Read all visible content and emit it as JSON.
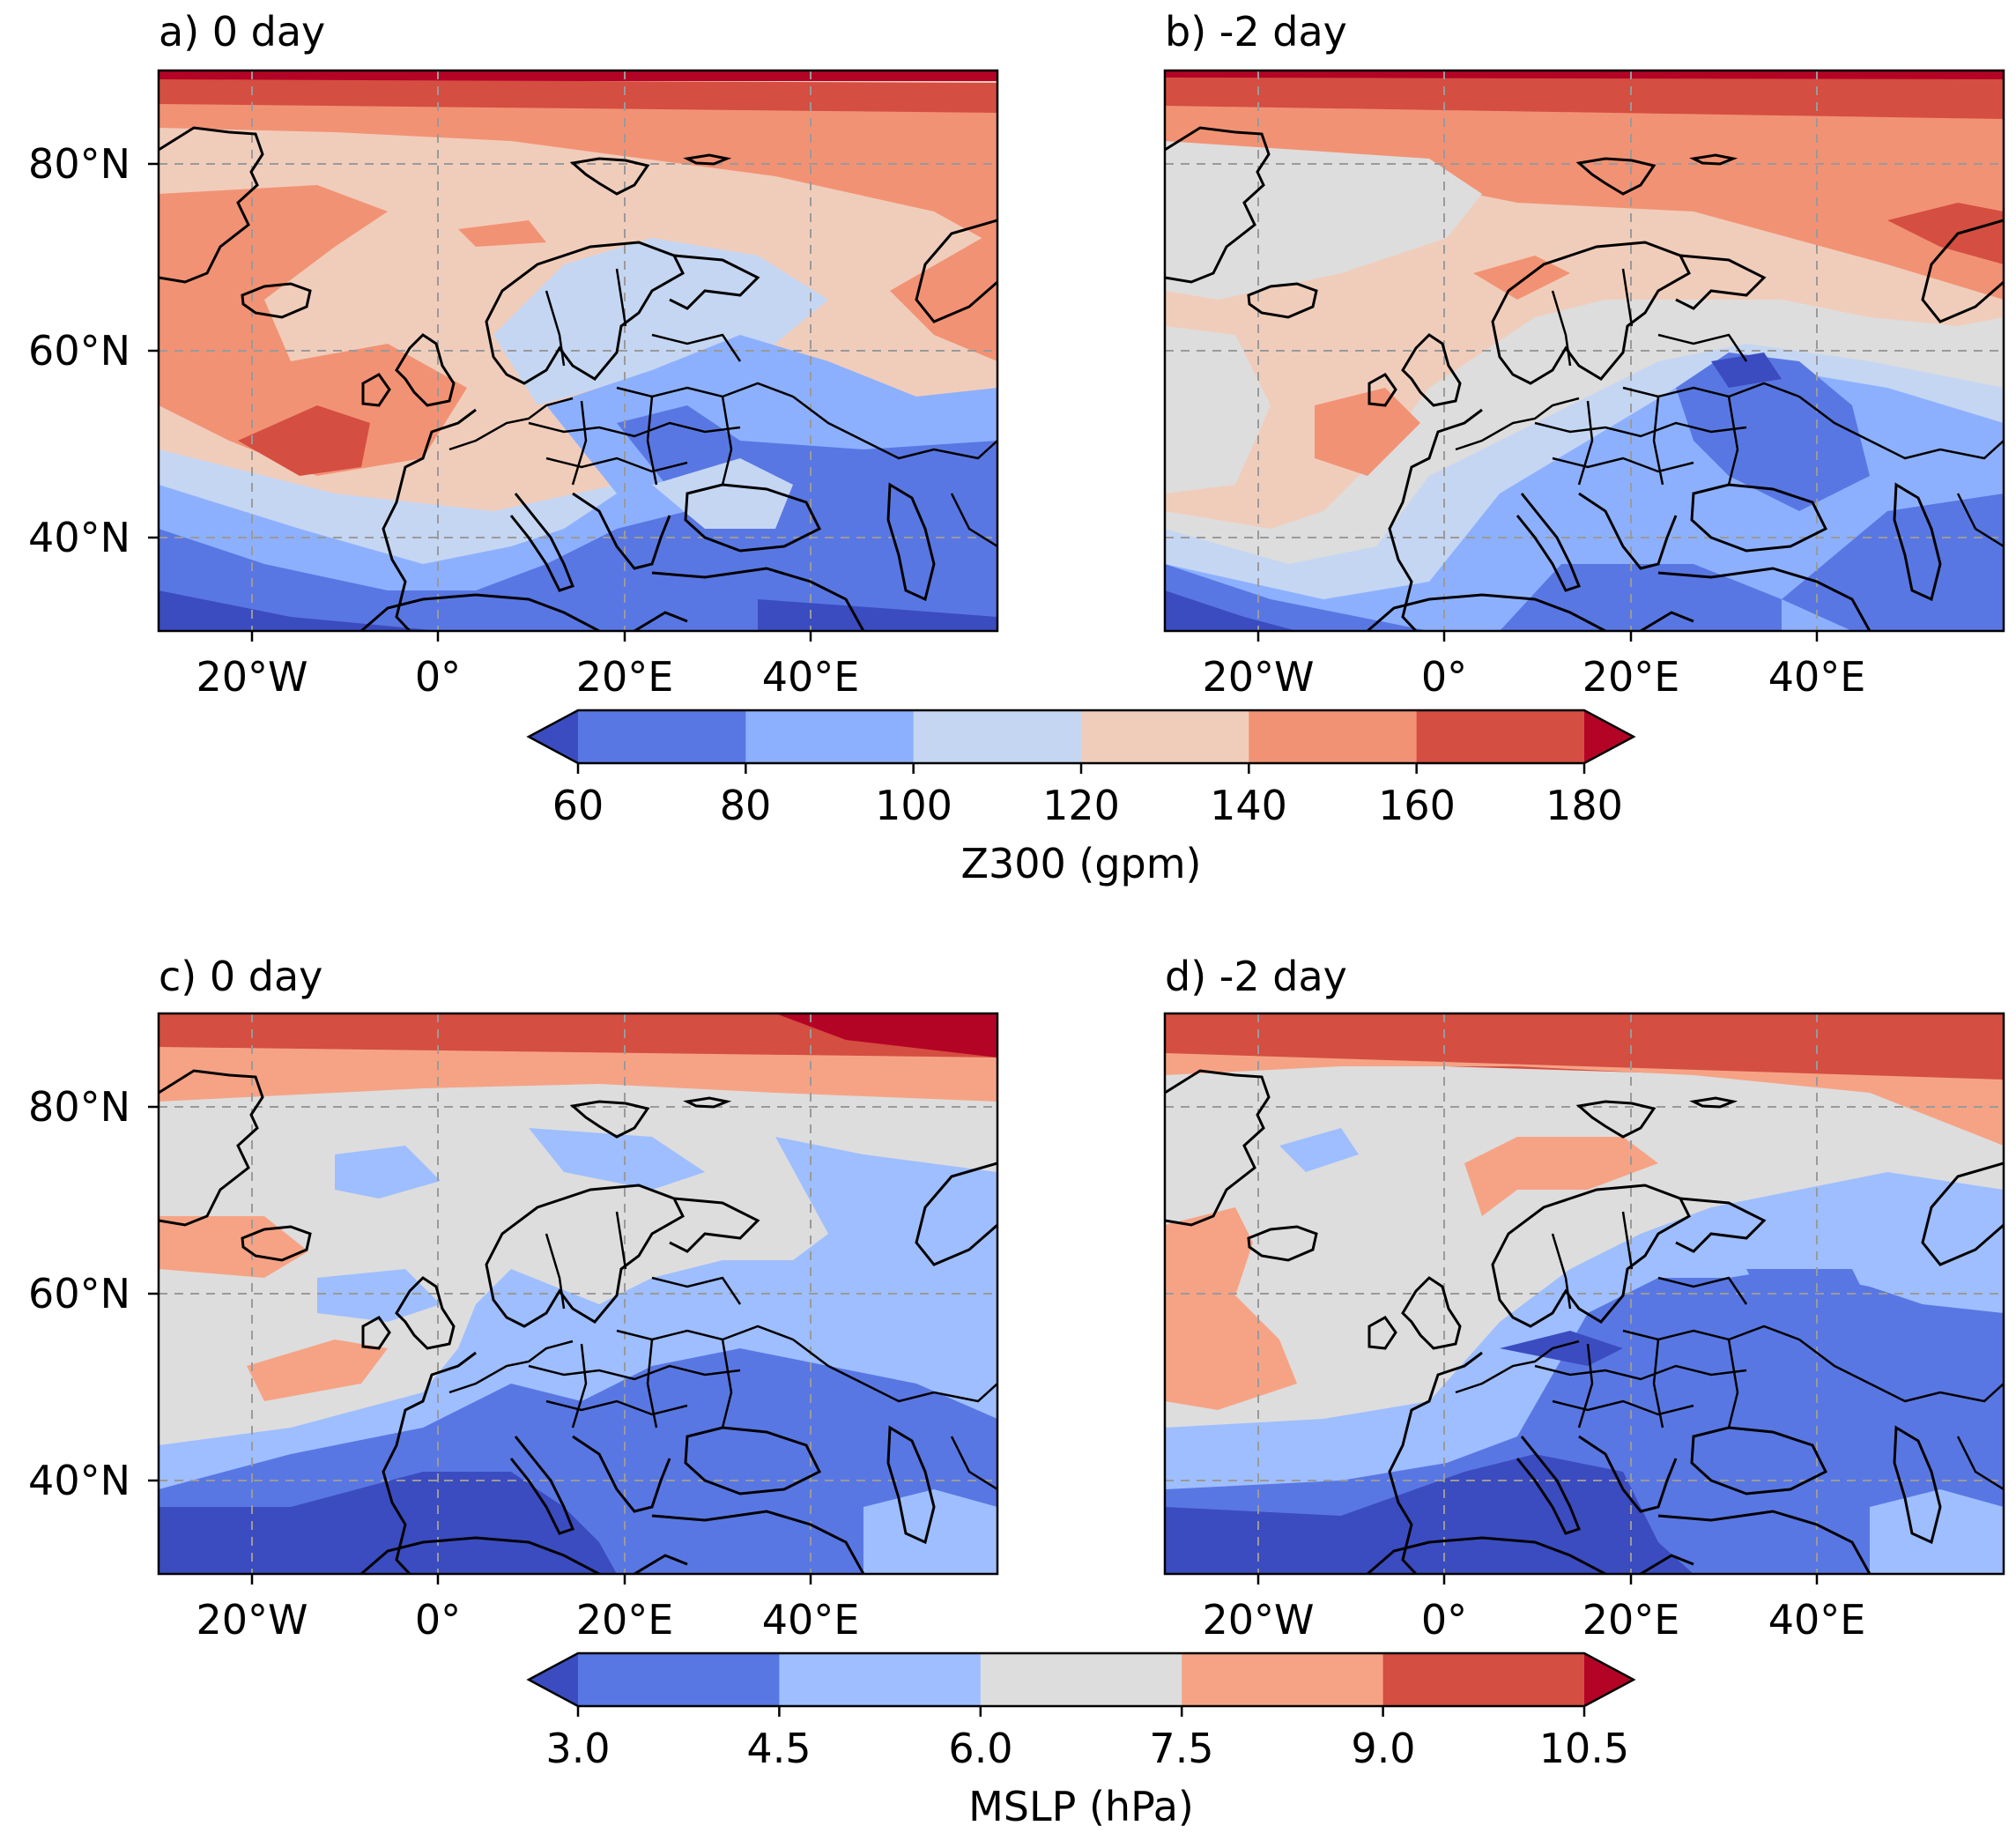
{
  "panels": [
    {
      "id": "a",
      "title": "a) 0 day",
      "field": "z300"
    },
    {
      "id": "b",
      "title": "b) -2 day",
      "field": "z300"
    },
    {
      "id": "c",
      "title": "c) 0 day",
      "field": "mslp"
    },
    {
      "id": "d",
      "title": "d) -2 day",
      "field": "mslp"
    }
  ],
  "map": {
    "lon_range": [
      -30,
      60
    ],
    "lat_range": [
      30,
      90
    ],
    "lon_ticks": [
      "20°W",
      "0°",
      "20°E",
      "40°E"
    ],
    "lat_ticks": [
      "80°N",
      "60°N",
      "40°N"
    ],
    "gridlines": true
  },
  "colorbars": {
    "z300": {
      "label": "Z300 (gpm)",
      "ticks": [
        "60",
        "80",
        "100",
        "120",
        "140",
        "160",
        "180"
      ],
      "levels": [
        60,
        80,
        100,
        120,
        140,
        160,
        180
      ],
      "extend": "both",
      "colors": [
        "#3b4cc0",
        "#5977e3",
        "#8db0fe",
        "#c5d6f2",
        "#f0cdbb",
        "#f29274",
        "#d44e41",
        "#b40426"
      ]
    },
    "mslp": {
      "label": "MSLP (hPa)",
      "ticks": [
        "3.0",
        "4.5",
        "6.0",
        "7.5",
        "9.0",
        "10.5"
      ],
      "levels": [
        3.0,
        4.5,
        6.0,
        7.5,
        9.0,
        10.5
      ],
      "extend": "both",
      "colors": [
        "#3b4cc0",
        "#5977e3",
        "#9ebeff",
        "#dddddd",
        "#f6a385",
        "#d44e41",
        "#b40426"
      ]
    }
  }
}
